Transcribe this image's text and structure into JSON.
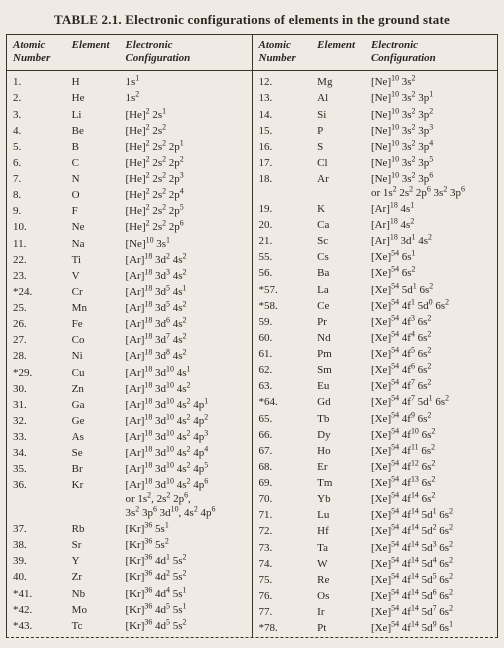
{
  "title": "TABLE 2.1. Electronic configurations of elements in the ground state",
  "headers": {
    "atomic_number": "Atomic Number",
    "element": "Element",
    "config": "Electronic Configuration"
  },
  "left": [
    {
      "n": "1.",
      "e": "H",
      "c": "1s<sup>1</sup>"
    },
    {
      "n": "2.",
      "e": "He",
      "c": "1s<sup>2</sup>"
    },
    {
      "n": "3.",
      "e": "Li",
      "c": "[He]<sup>2</sup> 2s<sup>1</sup>"
    },
    {
      "n": "4.",
      "e": "Be",
      "c": "[He]<sup>2</sup> 2s<sup>2</sup>"
    },
    {
      "n": "5.",
      "e": "B",
      "c": "[He]<sup>2</sup> 2s<sup>2</sup> 2p<sup>1</sup>"
    },
    {
      "n": "6.",
      "e": "C",
      "c": "[He]<sup>2</sup> 2s<sup>2</sup> 2p<sup>2</sup>"
    },
    {
      "n": "7.",
      "e": "N",
      "c": "[He]<sup>2</sup> 2s<sup>2</sup> 2p<sup>3</sup>"
    },
    {
      "n": "8.",
      "e": "O",
      "c": "[He]<sup>2</sup> 2s<sup>2</sup> 2p<sup>4</sup>"
    },
    {
      "n": "9.",
      "e": "F",
      "c": "[He]<sup>2</sup> 2s<sup>2</sup> 2p<sup>5</sup>"
    },
    {
      "n": "10.",
      "e": "Ne",
      "c": "[He]<sup>2</sup> 2s<sup>2</sup> 2p<sup>6</sup>"
    },
    {
      "n": "11.",
      "e": "Na",
      "c": "[Ne]<sup>10</sup> 3s<sup>1</sup>"
    },
    {
      "n": "22.",
      "e": "Ti",
      "c": "[Ar]<sup>18</sup> 3d<sup>2</sup> 4s<sup>2</sup>"
    },
    {
      "n": "23.",
      "e": "V",
      "c": "[Ar]<sup>18</sup> 3d<sup>3</sup> 4s<sup>2</sup>"
    },
    {
      "n": "*24.",
      "e": "Cr",
      "c": "[Ar]<sup>18</sup> 3d<sup>5</sup> 4s<sup>1</sup>"
    },
    {
      "n": "25.",
      "e": "Mn",
      "c": "[Ar]<sup>18</sup> 3d<sup>5</sup> 4s<sup>2</sup>"
    },
    {
      "n": "26.",
      "e": "Fe",
      "c": "[Ar]<sup>18</sup> 3d<sup>6</sup> 4s<sup>2</sup>"
    },
    {
      "n": "27.",
      "e": "Co",
      "c": "[Ar]<sup>18</sup> 3d<sup>7</sup> 4s<sup>2</sup>"
    },
    {
      "n": "28.",
      "e": "Ni",
      "c": "[Ar]<sup>18</sup> 3d<sup>8</sup> 4s<sup>2</sup>"
    },
    {
      "n": "*29.",
      "e": "Cu",
      "c": "[Ar]<sup>18</sup> 3d<sup>10</sup> 4s<sup>1</sup>"
    },
    {
      "n": "30.",
      "e": "Zn",
      "c": "[Ar]<sup>18</sup> 3d<sup>10</sup> 4s<sup>2</sup>"
    },
    {
      "n": "31.",
      "e": "Ga",
      "c": "[Ar]<sup>18</sup> 3d<sup>10</sup> 4s<sup>2</sup> 4p<sup>1</sup>"
    },
    {
      "n": "32.",
      "e": "Ge",
      "c": "[Ar]<sup>18</sup> 3d<sup>10</sup> 4s<sup>2</sup> 4p<sup>2</sup>"
    },
    {
      "n": "33.",
      "e": "As",
      "c": "[Ar]<sup>18</sup> 3d<sup>10</sup> 4s<sup>2</sup> 4p<sup>3</sup>"
    },
    {
      "n": "34.",
      "e": "Se",
      "c": "[Ar]<sup>18</sup> 3d<sup>10</sup> 4s<sup>2</sup> 4p<sup>4</sup>"
    },
    {
      "n": "35.",
      "e": "Br",
      "c": "[Ar]<sup>18</sup> 3d<sup>10</sup> 4s<sup>2</sup> 4p<sup>5</sup>"
    },
    {
      "n": "36.",
      "e": "Kr",
      "c": "[Ar]<sup>18</sup> 3d<sup>10</sup> 4s<sup>2</sup> 4p<sup>6</sup><span class='cont'>or 1s<sup>2</sup>, 2s<sup>2</sup> 2p<sup>6</sup>,</span><span class='cont'>3s<sup>2</sup> 3p<sup>6</sup> 3d<sup>10</sup>, 4s<sup>2</sup> 4p<sup>6</sup></span>"
    },
    {
      "n": "37.",
      "e": "Rb",
      "c": "[Kr]<sup>36</sup> 5s<sup>1</sup>"
    },
    {
      "n": "38.",
      "e": "Sr",
      "c": "[Kr]<sup>36</sup> 5s<sup>2</sup>"
    },
    {
      "n": "39.",
      "e": "Y",
      "c": "[Kr]<sup>36</sup> 4d<sup>1</sup> 5s<sup>2</sup>"
    },
    {
      "n": "40.",
      "e": "Zr",
      "c": "[Kr]<sup>36</sup> 4d<sup>2</sup> 5s<sup>2</sup>"
    },
    {
      "n": "*41.",
      "e": "Nb",
      "c": "[Kr]<sup>36</sup> 4d<sup>4</sup> 5s<sup>1</sup>"
    },
    {
      "n": "*42.",
      "e": "Mo",
      "c": "[Kr]<sup>36</sup> 4d<sup>5</sup> 5s<sup>1</sup>"
    },
    {
      "n": "*43.",
      "e": "Tc",
      "c": "[Kr]<sup>36</sup> 4d<sup>5</sup> 5s<sup>2</sup>"
    }
  ],
  "right": [
    {
      "n": "12.",
      "e": "Mg",
      "c": "[Ne]<sup>10</sup> 3s<sup>2</sup>"
    },
    {
      "n": "13.",
      "e": "Al",
      "c": "[Ne]<sup>10</sup> 3s<sup>2</sup> 3p<sup>1</sup>"
    },
    {
      "n": "14.",
      "e": "Si",
      "c": "[Ne]<sup>10</sup> 3s<sup>2</sup> 3p<sup>2</sup>"
    },
    {
      "n": "15.",
      "e": "P",
      "c": "[Ne]<sup>10</sup> 3s<sup>2</sup> 3p<sup>3</sup>"
    },
    {
      "n": "16.",
      "e": "S",
      "c": "[Ne]<sup>10</sup> 3s<sup>2</sup> 3p<sup>4</sup>"
    },
    {
      "n": "17.",
      "e": "Cl",
      "c": "[Ne]<sup>10</sup> 3s<sup>2</sup> 3p<sup>5</sup>"
    },
    {
      "n": "18.",
      "e": "Ar",
      "c": "[Ne]<sup>10</sup> 3s<sup>2</sup> 3p<sup>6</sup><span class='cont'>or 1s<sup>2</sup> 2s<sup>2</sup> 2p<sup>6</sup> 3s<sup>2</sup> 3p<sup>6</sup></span>"
    },
    {
      "n": "19.",
      "e": "K",
      "c": "[Ar]<sup>18</sup> 4s<sup>1</sup>"
    },
    {
      "n": "20.",
      "e": "Ca",
      "c": "[Ar]<sup>18</sup> 4s<sup>2</sup>"
    },
    {
      "n": "21.",
      "e": "Sc",
      "c": "[Ar]<sup>18</sup> 3d<sup>1</sup> 4s<sup>2</sup>"
    },
    {
      "n": "55.",
      "e": "Cs",
      "c": "[Xe]<sup>54</sup> 6s<sup>1</sup>"
    },
    {
      "n": "56.",
      "e": "Ba",
      "c": "[Xe]<sup>54</sup> 6s<sup>2</sup>"
    },
    {
      "n": "*57.",
      "e": "La",
      "c": "[Xe]<sup>54</sup> 5d<sup>1</sup> 6s<sup>2</sup>"
    },
    {
      "n": "*58.",
      "e": "Ce",
      "c": "[Xe]<sup>54</sup> 4f<sup>1</sup> 5d<sup>0</sup> 6s<sup>2</sup>"
    },
    {
      "n": "59.",
      "e": "Pr",
      "c": "[Xe]<sup>54</sup> 4f<sup>3</sup> 6s<sup>2</sup>"
    },
    {
      "n": "60.",
      "e": "Nd",
      "c": "[Xe]<sup>54</sup> 4f<sup>4</sup> 6s<sup>2</sup>"
    },
    {
      "n": "61.",
      "e": "Pm",
      "c": "[Xe]<sup>54</sup> 4f<sup>5</sup> 6s<sup>2</sup>"
    },
    {
      "n": "62.",
      "e": "Sm",
      "c": "[Xe]<sup>54</sup> 4f<sup>6</sup> 6s<sup>2</sup>"
    },
    {
      "n": "63.",
      "e": "Eu",
      "c": "[Xe]<sup>54</sup> 4f<sup>7</sup> 6s<sup>2</sup>"
    },
    {
      "n": "*64.",
      "e": "Gd",
      "c": "[Xe]<sup>54</sup> 4f<sup>7</sup> 5d<sup>1</sup> 6s<sup>2</sup>"
    },
    {
      "n": "65.",
      "e": "Tb",
      "c": "[Xe]<sup>54</sup> 4f<sup>9</sup> 6s<sup>2</sup>"
    },
    {
      "n": "66.",
      "e": "Dy",
      "c": "[Xe]<sup>54</sup> 4f<sup>10</sup> 6s<sup>2</sup>"
    },
    {
      "n": "67.",
      "e": "Ho",
      "c": "[Xe]<sup>54</sup> 4f<sup>11</sup> 6s<sup>2</sup>"
    },
    {
      "n": "68.",
      "e": "Er",
      "c": "[Xe]<sup>54</sup> 4f<sup>12</sup> 6s<sup>2</sup>"
    },
    {
      "n": "69.",
      "e": "Tm",
      "c": "[Xe]<sup>54</sup> 4f<sup>13</sup> 6s<sup>2</sup>"
    },
    {
      "n": "70.",
      "e": "Yb",
      "c": "[Xe]<sup>54</sup> 4f<sup>14</sup> 6s<sup>2</sup>"
    },
    {
      "n": "71.",
      "e": "Lu",
      "c": "[Xe]<sup>54</sup> 4f<sup>14</sup> 5d<sup>1</sup> 6s<sup>2</sup>"
    },
    {
      "n": "72.",
      "e": "Hf",
      "c": "[Xe]<sup>54</sup> 4f<sup>14</sup> 5d<sup>2</sup> 6s<sup>2</sup>"
    },
    {
      "n": "73.",
      "e": "Ta",
      "c": "[Xe]<sup>54</sup> 4f<sup>14</sup> 5d<sup>3</sup> 6s<sup>2</sup>"
    },
    {
      "n": "74.",
      "e": "W",
      "c": "[Xe]<sup>54</sup> 4f<sup>14</sup> 5d<sup>4</sup> 6s<sup>2</sup>"
    },
    {
      "n": "75.",
      "e": "Re",
      "c": "[Xe]<sup>54</sup> 4f<sup>14</sup> 5d<sup>5</sup> 6s<sup>2</sup>"
    },
    {
      "n": "76.",
      "e": "Os",
      "c": "[Xe]<sup>54</sup> 4f<sup>14</sup> 5d<sup>6</sup> 6s<sup>2</sup>"
    },
    {
      "n": "77.",
      "e": "Ir",
      "c": "[Xe]<sup>54</sup> 4f<sup>14</sup> 5d<sup>7</sup> 6s<sup>2</sup>"
    },
    {
      "n": "*78.",
      "e": "Pt",
      "c": "[Xe]<sup>54</sup> 4f<sup>14</sup> 5d<sup>9</sup> 6s<sup>1</sup>"
    }
  ]
}
